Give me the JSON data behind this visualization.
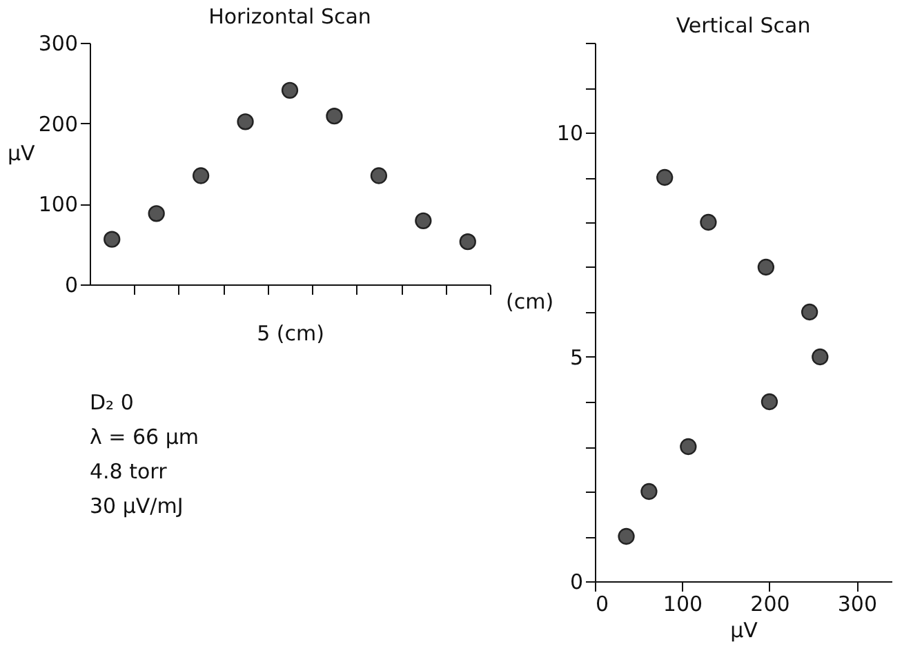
{
  "chart_data": [
    {
      "type": "scatter",
      "title": "Horizontal Scan",
      "xlabel": "5   (cm)",
      "ylabel": "µV",
      "categories": [
        null,
        null,
        null,
        null,
        null,
        null,
        null,
        null,
        null
      ],
      "series": [
        {
          "color": "#555555",
          "values": [
            56,
            88,
            135,
            202,
            241,
            209,
            135,
            79,
            53
          ]
        }
      ],
      "ylim": [
        0,
        300
      ],
      "yticks": [
        0,
        100,
        200,
        300
      ],
      "marker": "circle",
      "grid": false,
      "annotations": [
        "D₂ 0",
        "λ = 66 µm",
        "4.8 torr",
        "30 µV/mJ"
      ]
    },
    {
      "type": "scatter",
      "title": "Vertical Scan",
      "xlabel": "µV",
      "ylabel": "(cm)",
      "x": [
        36,
        62,
        107,
        200,
        258,
        246,
        196,
        130,
        80
      ],
      "series": [
        {
          "color": "#555555",
          "values": [
            1,
            2,
            3,
            4,
            5,
            6,
            7,
            8,
            9
          ]
        }
      ],
      "xlim": [
        0,
        340
      ],
      "xticks": [
        0,
        100,
        200,
        300
      ],
      "ylim": [
        0,
        12
      ],
      "yticks": [
        0,
        {
          "value": 1,
          "label": null
        },
        {
          "value": 2,
          "label": null
        },
        {
          "value": 3,
          "label": null
        },
        {
          "value": 4,
          "label": null
        },
        5,
        {
          "value": 6,
          "label": null
        },
        {
          "value": 7,
          "label": null
        },
        {
          "value": 8,
          "label": null
        },
        {
          "value": 9,
          "label": null
        },
        10,
        {
          "value": 11,
          "label": null
        },
        {
          "value": 12,
          "label": null
        }
      ],
      "marker": "circle",
      "grid": false
    }
  ]
}
